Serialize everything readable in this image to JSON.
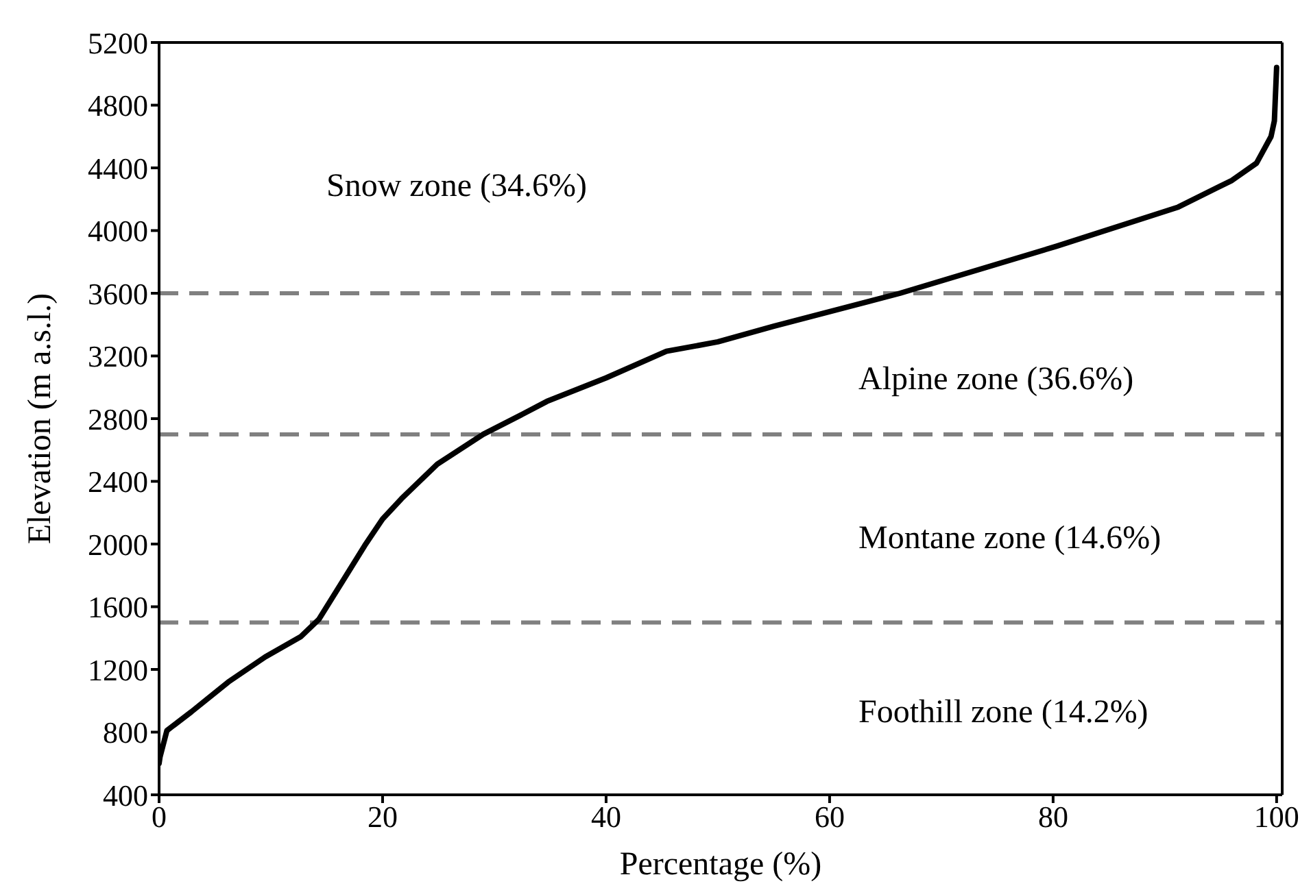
{
  "chart_data": {
    "type": "line",
    "xlabel": "Percentage (%)",
    "ylabel": "Elevation (m a.s.l.)",
    "x": [
      0,
      0.08,
      0.7,
      2.9,
      6.2,
      9.5,
      12.7,
      14.3,
      16.4,
      18.4,
      20.0,
      21.7,
      24.9,
      29.0,
      32.3,
      34.7,
      40,
      45.4,
      50,
      55,
      66.3,
      80.3,
      91.2,
      96.0,
      98.2,
      99.5,
      99.8,
      100
    ],
    "series": [
      {
        "color": "#000000",
        "values": [
          600,
          640,
          810,
          930,
          1120,
          1280,
          1410,
          1520,
          1760,
          1990,
          2160,
          2290,
          2510,
          2700,
          2820,
          2910,
          3060,
          3230,
          3290,
          3390,
          3600,
          3900,
          4150,
          4320,
          4430,
          4600,
          4700,
          5040
        ]
      }
    ],
    "xlim": [
      0,
      100.5
    ],
    "xticks": [
      0,
      20,
      40,
      60,
      80,
      100
    ],
    "ylim": [
      400,
      5200
    ],
    "yticks": [
      400,
      800,
      1200,
      1600,
      2000,
      2400,
      2800,
      3200,
      3600,
      4000,
      4400,
      4800,
      5200
    ],
    "grid": false,
    "legend": false,
    "marker": "none",
    "line_style": "solid",
    "ref_lines": [
      {
        "axis": "y",
        "value": 3600,
        "color": "#808080",
        "line_style": "dashed"
      },
      {
        "axis": "y",
        "value": 2700,
        "color": "#808080",
        "line_style": "dashed"
      },
      {
        "axis": "y",
        "value": 1500,
        "color": "#808080",
        "line_style": "dashed"
      }
    ],
    "annotations": [
      "Snow zone (34.6%)",
      "Alpine zone (36.6%)",
      "Montane zone (14.6%)",
      "Foothill zone (14.2%)"
    ]
  }
}
